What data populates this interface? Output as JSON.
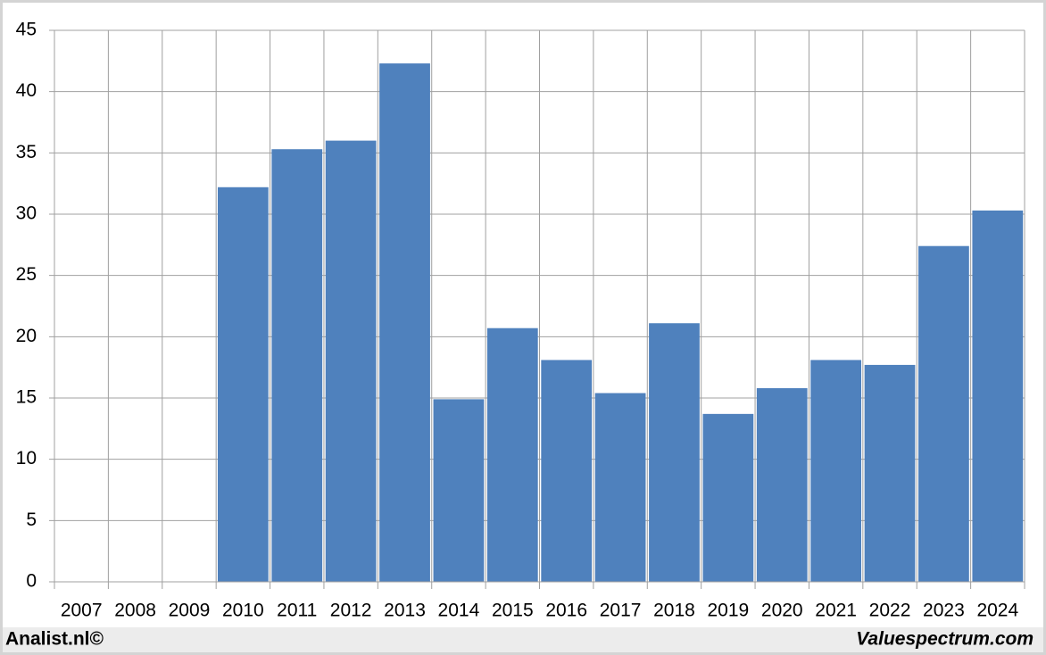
{
  "chart_data": {
    "type": "bar",
    "categories": [
      "2007",
      "2008",
      "2009",
      "2010",
      "2011",
      "2012",
      "2013",
      "2014",
      "2015",
      "2016",
      "2017",
      "2018",
      "2019",
      "2020",
      "2021",
      "2022",
      "2023",
      "2024"
    ],
    "values": [
      null,
      null,
      null,
      32.2,
      35.3,
      36.0,
      42.3,
      14.9,
      20.7,
      18.1,
      15.4,
      21.1,
      13.7,
      15.8,
      18.1,
      17.7,
      27.4,
      30.3
    ],
    "color": "#4f81bd",
    "ylim": [
      0,
      45
    ],
    "yticks": [
      0,
      5,
      10,
      15,
      20,
      25,
      30,
      35,
      40,
      45
    ],
    "grid": true,
    "annotations": [
      "Analist.nl©",
      "Valuespectrum.com"
    ]
  }
}
